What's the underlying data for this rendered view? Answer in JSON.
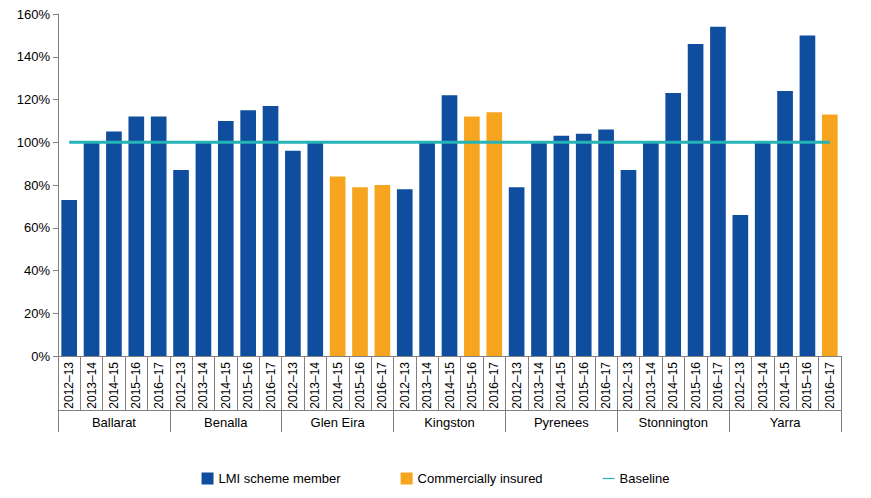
{
  "chart_data": {
    "type": "bar",
    "categories": [
      "2012–13",
      "2013–14",
      "2014–15",
      "2015–16",
      "2016–17",
      "2012–13",
      "2013–14",
      "2014–15",
      "2015–16",
      "2016–17",
      "2012–13",
      "2013–14",
      "2014–15",
      "2015–16",
      "2016–17",
      "2012–13",
      "2013–14",
      "2014–15",
      "2015–16",
      "2016–17",
      "2012–13",
      "2013–14",
      "2014–15",
      "2015–16",
      "2016–17",
      "2012–13",
      "2013–14",
      "2014–15",
      "2015–16",
      "2016–17",
      "2012–13",
      "2013–14",
      "2014–15",
      "2015–16",
      "2016–17"
    ],
    "groups": [
      "Ballarat",
      "Benalla",
      "Glen Eira",
      "Kingston",
      "Pyrenees",
      "Stonnington",
      "Yarra"
    ],
    "series": [
      {
        "name": "LMI scheme member",
        "type": "bar",
        "color": "#0f4d9e",
        "values": [
          73,
          100,
          105,
          112,
          112,
          87,
          100,
          110,
          115,
          117,
          96,
          100,
          null,
          null,
          null,
          78,
          100,
          122,
          null,
          null,
          79,
          100,
          103,
          104,
          106,
          87,
          100,
          123,
          146,
          154,
          66,
          100,
          124,
          150,
          null
        ]
      },
      {
        "name": "Commercially insured",
        "type": "bar",
        "color": "#f7a51e",
        "values": [
          null,
          null,
          null,
          null,
          null,
          null,
          null,
          null,
          null,
          null,
          null,
          null,
          84,
          79,
          80,
          null,
          null,
          null,
          112,
          114,
          null,
          null,
          null,
          null,
          null,
          null,
          null,
          null,
          null,
          null,
          null,
          null,
          null,
          null,
          113
        ]
      },
      {
        "name": "Baseline",
        "type": "line",
        "color": "#26b3b5",
        "values": [
          100,
          100,
          100,
          100,
          100,
          100,
          100,
          100,
          100,
          100,
          100,
          100,
          100,
          100,
          100,
          100,
          100,
          100,
          100,
          100,
          100,
          100,
          100,
          100,
          100,
          100,
          100,
          100,
          100,
          100,
          100,
          100,
          100,
          100,
          100
        ]
      }
    ],
    "ylim": [
      0,
      160
    ],
    "yticks": [
      {
        "value": 0,
        "label": "0%"
      },
      {
        "value": 20,
        "label": "20%"
      },
      {
        "value": 40,
        "label": "40%"
      },
      {
        "value": 60,
        "label": "60%"
      },
      {
        "value": 80,
        "label": "80%"
      },
      {
        "value": 100,
        "label": "100%"
      },
      {
        "value": 120,
        "label": "120%"
      },
      {
        "value": 140,
        "label": "140%"
      },
      {
        "value": 160,
        "label": "160%"
      }
    ],
    "grid": false,
    "legend": "bottom"
  }
}
